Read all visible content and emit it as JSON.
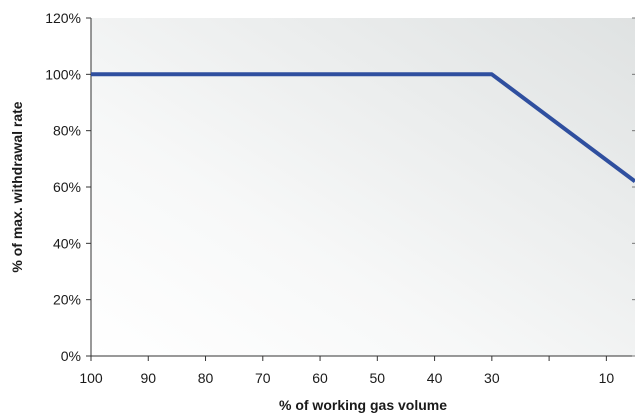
{
  "chart_data": {
    "type": "line",
    "title": "",
    "xlabel": "% of working gas volume",
    "ylabel": "% of max. withdrawal rate",
    "x_reversed": true,
    "xlim": [
      100,
      5
    ],
    "ylim": [
      0,
      120
    ],
    "x_ticks": [
      "100",
      "90",
      "80",
      "70",
      "60",
      "50",
      "40",
      "30",
      "10"
    ],
    "x_tick_values": [
      100,
      90,
      80,
      70,
      60,
      50,
      40,
      30,
      10
    ],
    "y_ticks": [
      "0%",
      "20%",
      "40%",
      "60%",
      "80%",
      "100%",
      "120%"
    ],
    "y_tick_values": [
      0,
      20,
      40,
      60,
      80,
      100,
      120
    ],
    "grid": false,
    "legend": "none",
    "series": [
      {
        "color": "#2f4f9f",
        "x": [
          100,
          30,
          5
        ],
        "y": [
          100,
          100,
          62
        ]
      }
    ]
  }
}
